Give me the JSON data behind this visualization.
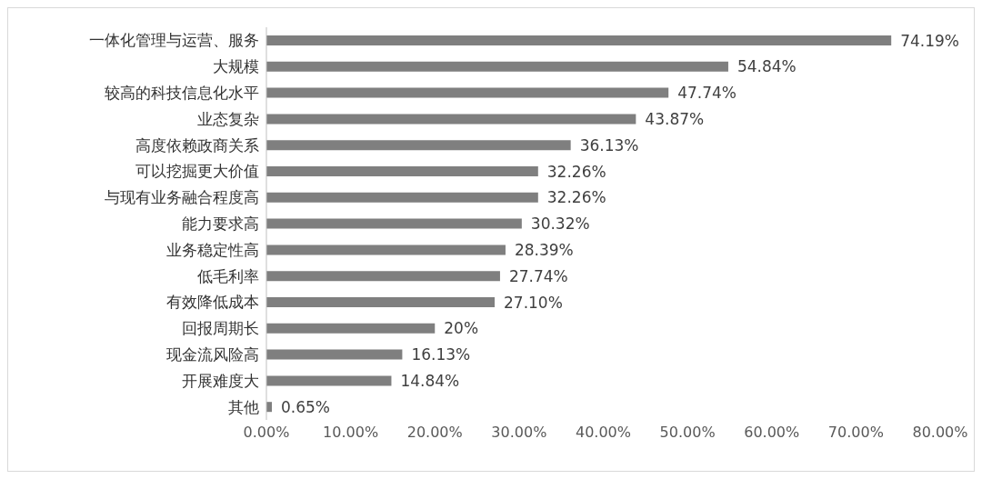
{
  "chart_data": {
    "type": "bar",
    "orientation": "horizontal",
    "categories": [
      "一体化管理与运营、服务",
      "大规模",
      "较高的科技信息化水平",
      "业态复杂",
      "高度依赖政商关系",
      "可以挖掘更大价值",
      "与现有业务融合程度高",
      "能力要求高",
      "业务稳定性高",
      "低毛利率",
      "有效降低成本",
      "回报周期长",
      "现金流风险高",
      "开展难度大",
      "其他"
    ],
    "values": [
      74.19,
      54.84,
      47.74,
      43.87,
      36.13,
      32.26,
      32.26,
      30.32,
      28.39,
      27.74,
      27.1,
      20,
      16.13,
      14.84,
      0.65
    ],
    "value_labels": [
      "74.19%",
      "54.84%",
      "47.74%",
      "43.87%",
      "36.13%",
      "32.26%",
      "32.26%",
      "30.32%",
      "28.39%",
      "27.74%",
      "27.10%",
      "20%",
      "16.13%",
      "14.84%",
      "0.65%"
    ],
    "color": "#7f7f7f",
    "xlim": [
      0,
      80
    ],
    "xticks": [
      {
        "value": 0,
        "label": "0.00%"
      },
      {
        "value": 10,
        "label": "10.00%"
      },
      {
        "value": 20,
        "label": "20.00%"
      },
      {
        "value": 30,
        "label": "30.00%"
      },
      {
        "value": 40,
        "label": "40.00%"
      },
      {
        "value": 50,
        "label": "50.00%"
      },
      {
        "value": 60,
        "label": "60.00%"
      },
      {
        "value": 70,
        "label": "70.00%"
      },
      {
        "value": 80,
        "label": "80.00%"
      }
    ]
  }
}
